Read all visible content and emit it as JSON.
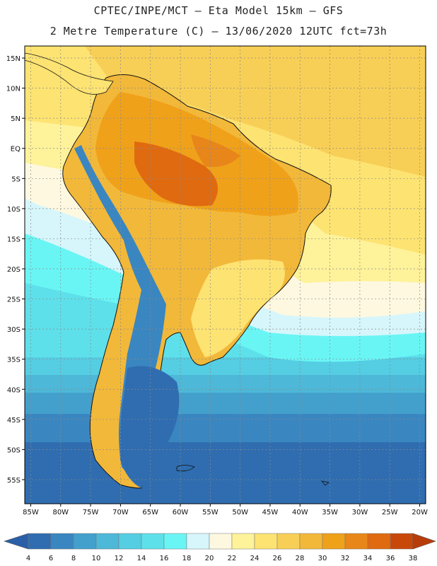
{
  "header": {
    "title_line1": "CPTEC/INPE/MCT –  Eta Model 15km – GFS",
    "title_line2": "2 Metre Temperature (C) – 13/06/2020 12UTC fct=73h"
  },
  "map": {
    "lon_range": [
      -86,
      -19
    ],
    "lat_range": [
      -59,
      17
    ],
    "lat_ticks": [
      {
        "value": 15,
        "label": "15N"
      },
      {
        "value": 10,
        "label": "10N"
      },
      {
        "value": 5,
        "label": "5N"
      },
      {
        "value": 0,
        "label": "EQ"
      },
      {
        "value": -5,
        "label": "5S"
      },
      {
        "value": -10,
        "label": "10S"
      },
      {
        "value": -15,
        "label": "15S"
      },
      {
        "value": -20,
        "label": "20S"
      },
      {
        "value": -25,
        "label": "25S"
      },
      {
        "value": -30,
        "label": "30S"
      },
      {
        "value": -35,
        "label": "35S"
      },
      {
        "value": -40,
        "label": "40S"
      },
      {
        "value": -45,
        "label": "45S"
      },
      {
        "value": -50,
        "label": "50S"
      },
      {
        "value": -55,
        "label": "55S"
      }
    ],
    "lon_ticks": [
      {
        "value": -85,
        "label": "85W"
      },
      {
        "value": -80,
        "label": "80W"
      },
      {
        "value": -75,
        "label": "75W"
      },
      {
        "value": -70,
        "label": "70W"
      },
      {
        "value": -65,
        "label": "65W"
      },
      {
        "value": -60,
        "label": "60W"
      },
      {
        "value": -55,
        "label": "55W"
      },
      {
        "value": -50,
        "label": "50W"
      },
      {
        "value": -45,
        "label": "45W"
      },
      {
        "value": -40,
        "label": "40W"
      },
      {
        "value": -35,
        "label": "35W"
      },
      {
        "value": -30,
        "label": "30W"
      },
      {
        "value": -25,
        "label": "25W"
      },
      {
        "value": -20,
        "label": "20W"
      }
    ]
  },
  "colorbar": {
    "labels": [
      "4",
      "6",
      "8",
      "10",
      "12",
      "14",
      "16",
      "18",
      "20",
      "22",
      "24",
      "26",
      "28",
      "30",
      "32",
      "34",
      "36",
      "38"
    ],
    "under_color": "#2a5fa8",
    "over_color": "#b83c0a",
    "colors": [
      "#2f6db0",
      "#3a86c0",
      "#43a0cc",
      "#4db8d8",
      "#55cde2",
      "#5ee0ea",
      "#6af5f5",
      "#d6f6fb",
      "#fef8e0",
      "#fef29a",
      "#fde372",
      "#f8cf56",
      "#f2b83a",
      "#f0a11a",
      "#e8861a",
      "#e06a10",
      "#c8480a"
    ]
  }
}
